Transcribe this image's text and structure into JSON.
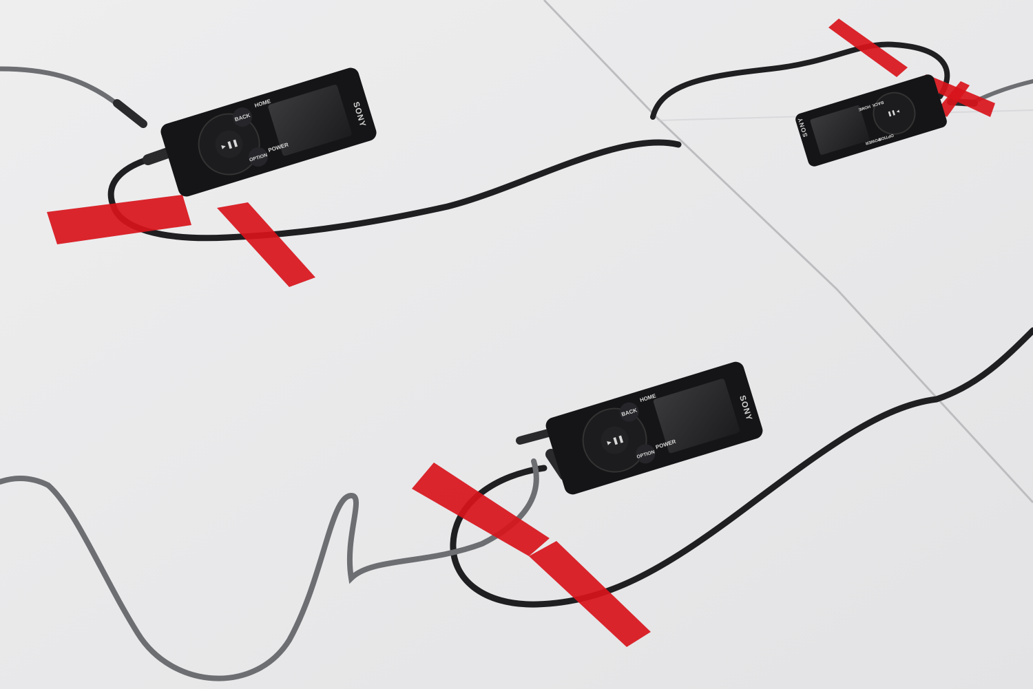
{
  "scene": {
    "description_visible": false,
    "surface_color": "#e9e9ea",
    "tape_color": "#d8141b",
    "cable_dark_color": "#1f1f21",
    "cable_gray_color": "#6d6e72",
    "device_color": "#151517"
  },
  "players": [
    {
      "brand": "SONY",
      "buttons": {
        "home": "HOME",
        "back": "BACK",
        "play": "►❚❚",
        "power": "POWER",
        "option": "OPTION"
      }
    },
    {
      "brand": "SONY",
      "buttons": {
        "home": "HOME",
        "back": "BACK",
        "play": "►❚❚",
        "power": "POWER",
        "option": "OPTION"
      }
    },
    {
      "brand": "SONY",
      "buttons": {
        "home": "HOME",
        "back": "BACK",
        "play": "►❚❚",
        "power": "POWER",
        "option": "OPTION"
      }
    }
  ]
}
